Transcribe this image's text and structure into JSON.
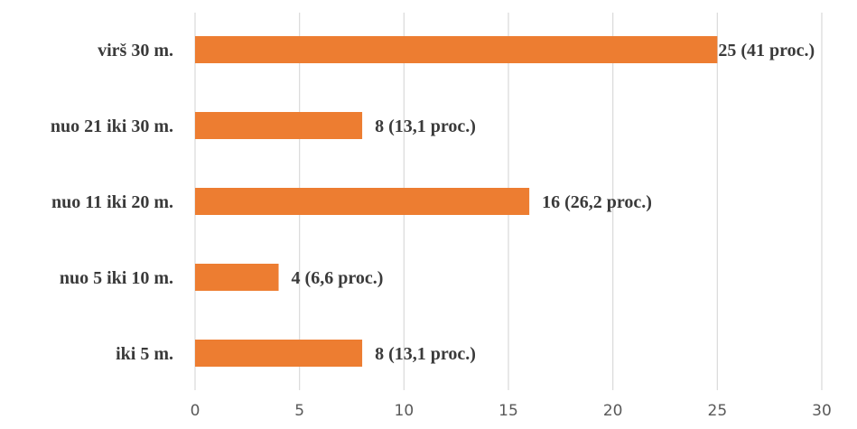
{
  "chart_data": {
    "type": "bar",
    "orientation": "horizontal",
    "categories": [
      "virš 30 m.",
      "nuo 21 iki 30 m.",
      "nuo 11 iki 20 m.",
      "nuo 5 iki 10 m.",
      "iki 5 m."
    ],
    "values": [
      25,
      8,
      16,
      4,
      8
    ],
    "data_labels": [
      "25  (41 proc.)",
      "8 (13,1 proc.)",
      "16 (26,2 proc.)",
      "4 (6,6 proc.)",
      "8  (13,1 proc.)"
    ],
    "x_ticks": [
      "0",
      "5",
      "10",
      "15",
      "20",
      "25",
      "30"
    ],
    "xlim": [
      0,
      30
    ],
    "grid": "vertical",
    "legend": "none",
    "bar_color": "#ED7D31",
    "title": "",
    "xlabel": "",
    "ylabel": ""
  }
}
